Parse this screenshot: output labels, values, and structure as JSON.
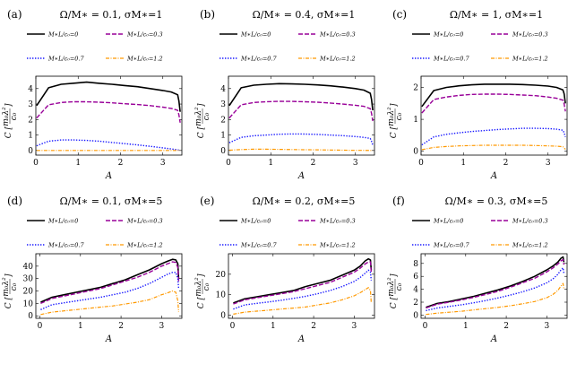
{
  "figure": {
    "xlabel": "A",
    "ylabel": "C [m₀λ²/c₀]",
    "ylabel_prefix": "C",
    "ylabel_frac_num": "m₀λ²",
    "ylabel_frac_den": "c₀",
    "legend": [
      "M∗L/c₀=0",
      "M∗L/c₀=0.3",
      "M∗L/c₀=0.7",
      "M∗L/c₀=1.2"
    ]
  },
  "colors": {
    "series0": "#000000",
    "series1": "#990099",
    "series2": "#1a1aff",
    "series3": "#ff9900",
    "axis": "#000000"
  },
  "chart_data": [
    {
      "type": "line",
      "panel": "(a)",
      "title": "Ω/M∗ = 0.1, σM∗=1",
      "xlabel": "A",
      "ylabel": "C",
      "xlim": [
        0,
        3.45
      ],
      "ylim": [
        -0.3,
        4.8
      ],
      "xticks": [
        0,
        1,
        2,
        3
      ],
      "yticks": [
        0,
        1,
        2,
        3,
        4
      ],
      "x": [
        0.02,
        0.3,
        0.6,
        0.9,
        1.2,
        1.5,
        1.8,
        2.1,
        2.4,
        2.7,
        3.0,
        3.2,
        3.35,
        3.38,
        3.41
      ],
      "series": [
        {
          "name": "M∗L/c₀=0",
          "style": "solid",
          "values": [
            2.9,
            4.05,
            4.28,
            4.35,
            4.42,
            4.34,
            4.28,
            4.2,
            4.12,
            4.0,
            3.88,
            3.78,
            3.6,
            3.2,
            2.5
          ]
        },
        {
          "name": "M∗L/c₀=0.3",
          "style": "dashed",
          "values": [
            2.1,
            2.95,
            3.1,
            3.15,
            3.15,
            3.12,
            3.08,
            3.02,
            2.97,
            2.9,
            2.8,
            2.72,
            2.6,
            2.3,
            1.8
          ]
        },
        {
          "name": "M∗L/c₀=0.7",
          "style": "dotted",
          "values": [
            0.3,
            0.6,
            0.68,
            0.68,
            0.65,
            0.6,
            0.52,
            0.44,
            0.36,
            0.27,
            0.17,
            0.1,
            0.04,
            0.02,
            0.0
          ]
        },
        {
          "name": "M∗L/c₀=1.2",
          "style": "dashdot",
          "values": [
            0.0,
            0.0,
            0.0,
            0.0,
            0.0,
            0.0,
            0.0,
            0.0,
            0.0,
            0.0,
            0.0,
            0.0,
            0.0,
            0.0,
            0.0
          ]
        }
      ]
    },
    {
      "type": "line",
      "panel": "(b)",
      "title": "Ω/M∗ = 0.4, σM∗=1",
      "xlabel": "A",
      "ylabel": "C",
      "xlim": [
        0,
        3.45
      ],
      "ylim": [
        -0.3,
        4.8
      ],
      "xticks": [
        0,
        1,
        2,
        3
      ],
      "yticks": [
        0,
        1,
        2,
        3,
        4
      ],
      "x": [
        0.02,
        0.3,
        0.6,
        0.9,
        1.2,
        1.5,
        1.8,
        2.1,
        2.4,
        2.7,
        3.0,
        3.2,
        3.35,
        3.38,
        3.41
      ],
      "series": [
        {
          "name": "M∗L/c₀=0",
          "style": "solid",
          "values": [
            2.9,
            4.05,
            4.22,
            4.28,
            4.32,
            4.3,
            4.28,
            4.24,
            4.18,
            4.1,
            4.0,
            3.9,
            3.7,
            3.3,
            2.6
          ]
        },
        {
          "name": "M∗L/c₀=0.3",
          "style": "dashed",
          "values": [
            2.1,
            2.95,
            3.1,
            3.15,
            3.18,
            3.17,
            3.15,
            3.12,
            3.07,
            3.0,
            2.92,
            2.85,
            2.7,
            2.4,
            1.9
          ]
        },
        {
          "name": "M∗L/c₀=0.7",
          "style": "dotted",
          "values": [
            0.5,
            0.85,
            0.95,
            1.0,
            1.05,
            1.07,
            1.06,
            1.04,
            1.0,
            0.96,
            0.9,
            0.85,
            0.78,
            0.6,
            0.35
          ]
        },
        {
          "name": "M∗L/c₀=1.2",
          "style": "dashdot",
          "values": [
            0.02,
            0.06,
            0.08,
            0.08,
            0.07,
            0.06,
            0.05,
            0.04,
            0.03,
            0.02,
            0.01,
            0.01,
            0.0,
            0.0,
            0.0
          ]
        }
      ]
    },
    {
      "type": "line",
      "panel": "(c)",
      "title": "Ω/M∗ = 1, σM∗=1",
      "xlabel": "A",
      "ylabel": "C",
      "xlim": [
        0,
        3.45
      ],
      "ylim": [
        -0.12,
        2.35
      ],
      "xticks": [
        0,
        1,
        2,
        3
      ],
      "yticks": [
        0,
        1,
        2
      ],
      "x": [
        0.02,
        0.3,
        0.6,
        0.9,
        1.2,
        1.5,
        1.8,
        2.1,
        2.4,
        2.7,
        3.0,
        3.2,
        3.35,
        3.38,
        3.41
      ],
      "series": [
        {
          "name": "M∗L/c₀=0",
          "style": "solid",
          "values": [
            1.4,
            1.9,
            2.0,
            2.05,
            2.08,
            2.1,
            2.1,
            2.1,
            2.09,
            2.07,
            2.04,
            2.0,
            1.92,
            1.8,
            1.5
          ]
        },
        {
          "name": "M∗L/c₀=0.3",
          "style": "dashed",
          "values": [
            1.2,
            1.62,
            1.7,
            1.75,
            1.78,
            1.79,
            1.79,
            1.78,
            1.76,
            1.74,
            1.7,
            1.66,
            1.6,
            1.48,
            1.25
          ]
        },
        {
          "name": "M∗L/c₀=0.7",
          "style": "dotted",
          "values": [
            0.2,
            0.45,
            0.53,
            0.58,
            0.62,
            0.65,
            0.68,
            0.7,
            0.72,
            0.72,
            0.71,
            0.69,
            0.66,
            0.58,
            0.45
          ]
        },
        {
          "name": "M∗L/c₀=1.2",
          "style": "dashdot",
          "values": [
            0.05,
            0.12,
            0.15,
            0.17,
            0.18,
            0.19,
            0.19,
            0.19,
            0.19,
            0.18,
            0.17,
            0.16,
            0.14,
            0.11,
            0.06
          ]
        }
      ]
    },
    {
      "type": "line",
      "panel": "(d)",
      "title": "Ω/M∗ = 0.1, σM∗=5",
      "xlabel": "A",
      "ylabel": "C",
      "xlim": [
        -0.1,
        3.5
      ],
      "ylim": [
        -2,
        50
      ],
      "xticks": [
        0,
        1,
        2,
        3
      ],
      "yticks": [
        0,
        10,
        20,
        30,
        40
      ],
      "x": [
        0.02,
        0.3,
        0.6,
        0.9,
        1.2,
        1.5,
        1.8,
        2.1,
        2.4,
        2.7,
        3.0,
        3.15,
        3.27,
        3.35,
        3.4,
        3.42
      ],
      "series": [
        {
          "name": "M∗L/c₀=0",
          "style": "solid",
          "values": [
            11,
            15,
            17,
            19,
            21,
            23,
            26,
            29,
            33,
            37,
            42,
            44,
            45.5,
            45,
            42,
            30
          ]
        },
        {
          "name": "M∗L/c₀=0.3",
          "style": "dashed",
          "values": [
            10,
            14,
            16,
            18,
            20,
            22,
            25,
            28,
            31,
            35,
            40,
            42,
            43.5,
            43,
            39,
            28
          ]
        },
        {
          "name": "M∗L/c₀=0.7",
          "style": "dotted",
          "values": [
            5,
            9,
            10.5,
            12,
            13.5,
            15,
            17,
            19,
            22,
            26,
            31,
            33.5,
            35,
            35,
            30,
            22
          ]
        },
        {
          "name": "M∗L/c₀=1.2",
          "style": "dashdot",
          "values": [
            1,
            3,
            4,
            5,
            6,
            7,
            8,
            9.5,
            11,
            13,
            17,
            18.5,
            20,
            19,
            12,
            3
          ]
        }
      ]
    },
    {
      "type": "line",
      "panel": "(e)",
      "title": "Ω/M∗ = 0.2, σM∗=5",
      "xlabel": "A",
      "ylabel": "C",
      "xlim": [
        -0.1,
        3.5
      ],
      "ylim": [
        -1.5,
        30
      ],
      "xticks": [
        0,
        1,
        2,
        3
      ],
      "yticks": [
        0,
        10,
        20
      ],
      "x": [
        0.02,
        0.3,
        0.6,
        0.9,
        1.2,
        1.5,
        1.8,
        2.1,
        2.4,
        2.7,
        3.0,
        3.15,
        3.27,
        3.35,
        3.4,
        3.42
      ],
      "series": [
        {
          "name": "M∗L/c₀=0",
          "style": "solid",
          "values": [
            6,
            8,
            9,
            10,
            11,
            12,
            14,
            15.5,
            17,
            19.5,
            22,
            24,
            26.5,
            27.5,
            27,
            22
          ]
        },
        {
          "name": "M∗L/c₀=0.3",
          "style": "dashed",
          "values": [
            5.5,
            7.5,
            8.5,
            9.5,
            10.5,
            11.5,
            13,
            14.5,
            16,
            18.5,
            21,
            23,
            25,
            26,
            26,
            21
          ]
        },
        {
          "name": "M∗L/c₀=0.7",
          "style": "dotted",
          "values": [
            3,
            5,
            5.8,
            6.5,
            7.3,
            8.2,
            9.2,
            10.5,
            12,
            14,
            16.5,
            18.5,
            20.5,
            22,
            21,
            17
          ]
        },
        {
          "name": "M∗L/c₀=1.2",
          "style": "dashdot",
          "values": [
            0.5,
            1.5,
            2,
            2.5,
            3,
            3.5,
            4,
            5,
            6,
            7.5,
            9.5,
            11,
            12.5,
            13.5,
            12,
            6
          ]
        }
      ]
    },
    {
      "type": "line",
      "panel": "(f)",
      "title": "Ω/M∗ = 0.3, σM∗=5",
      "xlabel": "A",
      "ylabel": "C",
      "xlim": [
        -0.1,
        3.5
      ],
      "ylim": [
        -0.5,
        9.5
      ],
      "xticks": [
        0,
        1,
        2,
        3
      ],
      "yticks": [
        0,
        2,
        4,
        6,
        8
      ],
      "x": [
        0.02,
        0.3,
        0.6,
        0.9,
        1.2,
        1.5,
        1.8,
        2.1,
        2.4,
        2.7,
        3.0,
        3.15,
        3.27,
        3.35,
        3.4,
        3.42
      ],
      "series": [
        {
          "name": "M∗L/c₀=0",
          "style": "solid",
          "values": [
            1.2,
            1.8,
            2.1,
            2.5,
            2.9,
            3.4,
            3.9,
            4.5,
            5.2,
            6.0,
            7.0,
            7.6,
            8.2,
            8.8,
            9.0,
            8.2
          ]
        },
        {
          "name": "M∗L/c₀=0.3",
          "style": "dashed",
          "values": [
            1.1,
            1.7,
            2.0,
            2.35,
            2.75,
            3.2,
            3.7,
            4.3,
            5.0,
            5.7,
            6.7,
            7.3,
            7.9,
            8.4,
            8.6,
            7.8
          ]
        },
        {
          "name": "M∗L/c₀=0.7",
          "style": "dotted",
          "values": [
            0.7,
            1.1,
            1.35,
            1.6,
            1.9,
            2.25,
            2.65,
            3.1,
            3.6,
            4.2,
            5.0,
            5.6,
            6.3,
            7.0,
            7.3,
            6.5
          ]
        },
        {
          "name": "M∗L/c₀=1.2",
          "style": "dashdot",
          "values": [
            0.1,
            0.3,
            0.45,
            0.6,
            0.8,
            1.0,
            1.2,
            1.45,
            1.75,
            2.1,
            2.7,
            3.2,
            3.8,
            4.5,
            4.9,
            4.0
          ]
        }
      ]
    }
  ]
}
